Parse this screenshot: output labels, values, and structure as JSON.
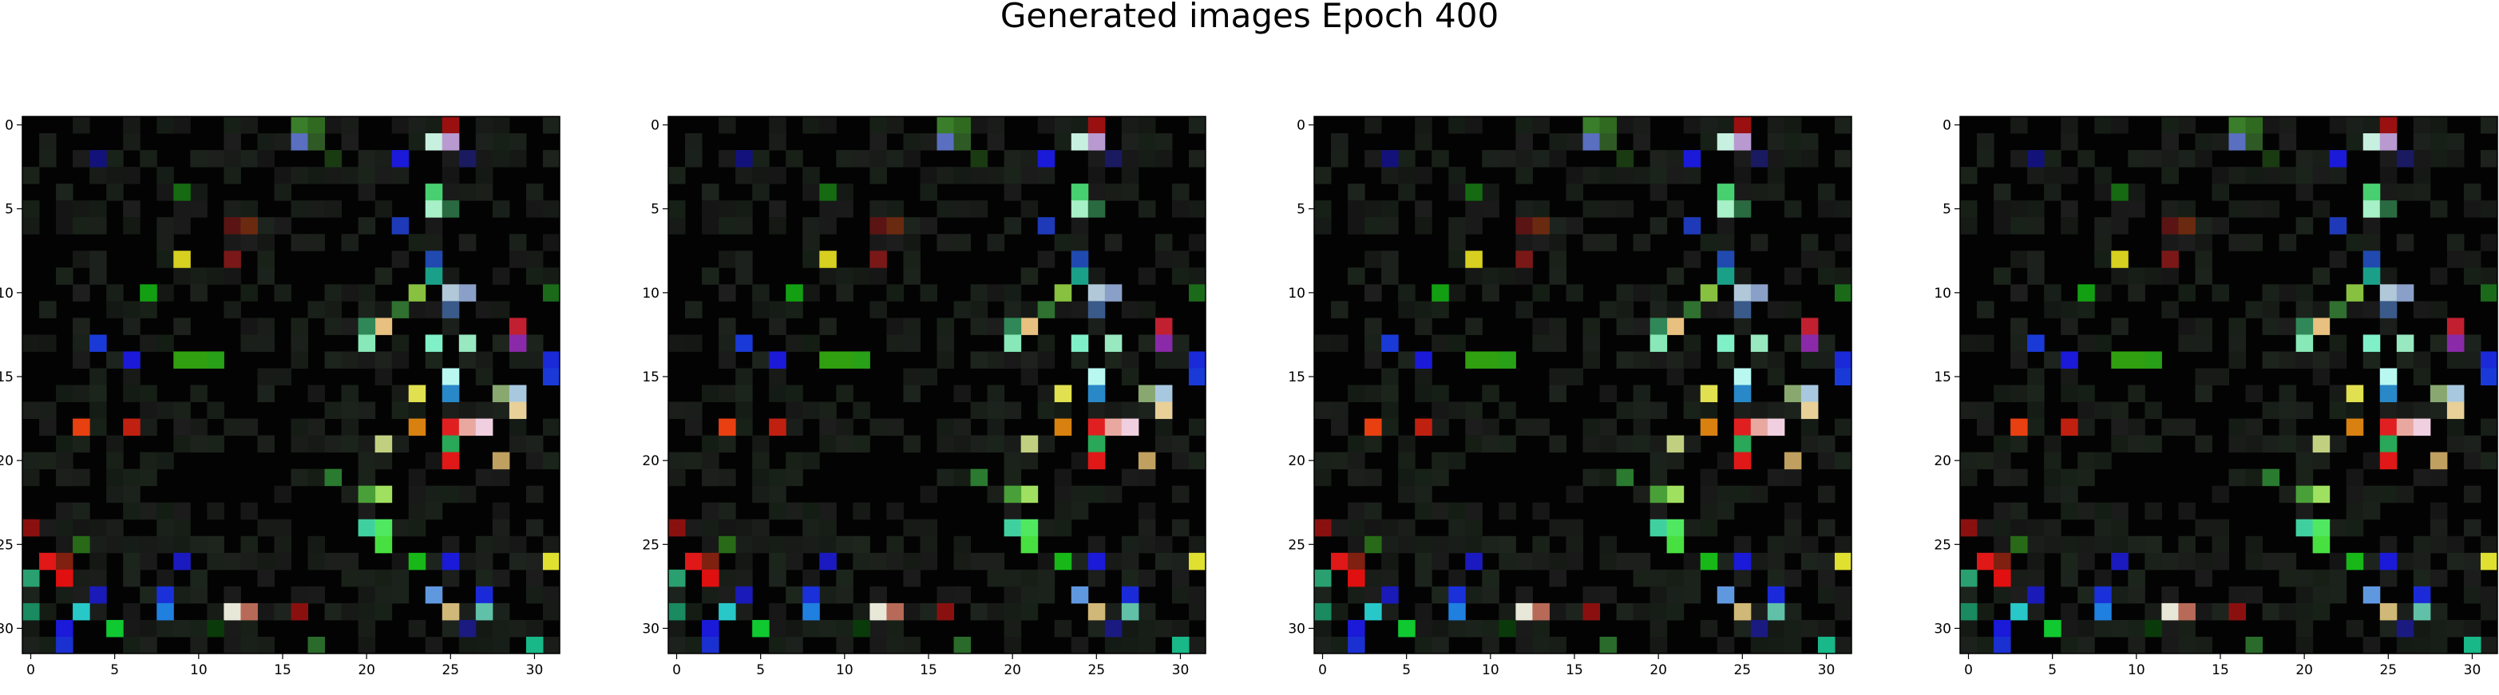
{
  "figure": {
    "title": "Generated images Epoch 400"
  },
  "chart_data": {
    "type": "heatmap",
    "title": "Generated images Epoch 400",
    "grid_size": 32,
    "n_panels": 4,
    "x_ticks": [
      0,
      5,
      10,
      15,
      20,
      25,
      30
    ],
    "y_ticks": [
      0,
      5,
      10,
      15,
      20,
      25,
      30
    ],
    "xlim": [
      -0.5,
      31.5
    ],
    "ylim": [
      31.5,
      -0.5
    ],
    "grid": false,
    "background_color": "#030303",
    "visible_pixels": [
      {
        "x": 16,
        "y": 0,
        "color": "#3a7d2a"
      },
      {
        "x": 17,
        "y": 0,
        "color": "#2f6a20"
      },
      {
        "x": 25,
        "y": 0,
        "color": "#9a1010"
      },
      {
        "x": 16,
        "y": 1,
        "color": "#5a6fbf"
      },
      {
        "x": 17,
        "y": 1,
        "color": "#2f5a25"
      },
      {
        "x": 24,
        "y": 1,
        "color": "#c8f0e0"
      },
      {
        "x": 25,
        "y": 1,
        "color": "#b89ad0"
      },
      {
        "x": 4,
        "y": 2,
        "color": "#12127a"
      },
      {
        "x": 18,
        "y": 2,
        "color": "#1a3a12"
      },
      {
        "x": 22,
        "y": 2,
        "color": "#1a1ad8"
      },
      {
        "x": 26,
        "y": 2,
        "color": "#1a1a60"
      },
      {
        "x": 9,
        "y": 4,
        "color": "#156a12"
      },
      {
        "x": 24,
        "y": 4,
        "color": "#48d070"
      },
      {
        "x": 24,
        "y": 5,
        "color": "#a8f0c8"
      },
      {
        "x": 25,
        "y": 5,
        "color": "#2a6a40"
      },
      {
        "x": 12,
        "y": 6,
        "color": "#5a1414"
      },
      {
        "x": 13,
        "y": 6,
        "color": "#6a2a10"
      },
      {
        "x": 22,
        "y": 6,
        "color": "#1e3ab8"
      },
      {
        "x": 9,
        "y": 8,
        "color": "#d8d020"
      },
      {
        "x": 12,
        "y": 8,
        "color": "#7a1818"
      },
      {
        "x": 24,
        "y": 8,
        "color": "#204ab0"
      },
      {
        "x": 24,
        "y": 9,
        "color": "#1aa088"
      },
      {
        "x": 7,
        "y": 10,
        "color": "#12a012"
      },
      {
        "x": 23,
        "y": 10,
        "color": "#88c040"
      },
      {
        "x": 25,
        "y": 10,
        "color": "#b0c8d8"
      },
      {
        "x": 26,
        "y": 10,
        "color": "#8aa0c8"
      },
      {
        "x": 31,
        "y": 10,
        "color": "#1a6a1a"
      },
      {
        "x": 22,
        "y": 11,
        "color": "#307030"
      },
      {
        "x": 25,
        "y": 11,
        "color": "#3a5a8a"
      },
      {
        "x": 21,
        "y": 12,
        "color": "#e8c080"
      },
      {
        "x": 20,
        "y": 12,
        "color": "#308858"
      },
      {
        "x": 29,
        "y": 12,
        "color": "#c02030"
      },
      {
        "x": 4,
        "y": 13,
        "color": "#1a3ad8"
      },
      {
        "x": 20,
        "y": 13,
        "color": "#88e8b8"
      },
      {
        "x": 24,
        "y": 13,
        "color": "#80f0c8"
      },
      {
        "x": 26,
        "y": 13,
        "color": "#98e8c0"
      },
      {
        "x": 29,
        "y": 13,
        "color": "#8a2aa8"
      },
      {
        "x": 6,
        "y": 14,
        "color": "#1a1ad8"
      },
      {
        "x": 9,
        "y": 14,
        "color": "#30a010"
      },
      {
        "x": 10,
        "y": 14,
        "color": "#30a010"
      },
      {
        "x": 11,
        "y": 14,
        "color": "#28a018"
      },
      {
        "x": 31,
        "y": 14,
        "color": "#1a2ad8"
      },
      {
        "x": 25,
        "y": 15,
        "color": "#b8f8f0"
      },
      {
        "x": 31,
        "y": 15,
        "color": "#1a3ad8"
      },
      {
        "x": 23,
        "y": 16,
        "color": "#e0e050"
      },
      {
        "x": 25,
        "y": 16,
        "color": "#2888c8"
      },
      {
        "x": 28,
        "y": 16,
        "color": "#88a870"
      },
      {
        "x": 29,
        "y": 16,
        "color": "#a8c8e0"
      },
      {
        "x": 29,
        "y": 17,
        "color": "#e8d098"
      },
      {
        "x": 3,
        "y": 18,
        "color": "#e84010"
      },
      {
        "x": 6,
        "y": 18,
        "color": "#c02010"
      },
      {
        "x": 23,
        "y": 18,
        "color": "#d88010"
      },
      {
        "x": 25,
        "y": 18,
        "color": "#e02020"
      },
      {
        "x": 26,
        "y": 18,
        "color": "#e8a8a0"
      },
      {
        "x": 27,
        "y": 18,
        "color": "#f0d0e0"
      },
      {
        "x": 21,
        "y": 19,
        "color": "#c0d080"
      },
      {
        "x": 25,
        "y": 19,
        "color": "#28a858"
      },
      {
        "x": 25,
        "y": 20,
        "color": "#e01818"
      },
      {
        "x": 28,
        "y": 20,
        "color": "#c0a060"
      },
      {
        "x": 18,
        "y": 21,
        "color": "#2a7a30"
      },
      {
        "x": 21,
        "y": 22,
        "color": "#a0e060"
      },
      {
        "x": 20,
        "y": 22,
        "color": "#4aa038"
      },
      {
        "x": 0,
        "y": 24,
        "color": "#8a1010"
      },
      {
        "x": 20,
        "y": 24,
        "color": "#40d0a0"
      },
      {
        "x": 21,
        "y": 24,
        "color": "#50e860"
      },
      {
        "x": 3,
        "y": 25,
        "color": "#286a18"
      },
      {
        "x": 21,
        "y": 25,
        "color": "#48e040"
      },
      {
        "x": 1,
        "y": 26,
        "color": "#e01818"
      },
      {
        "x": 2,
        "y": 26,
        "color": "#802010"
      },
      {
        "x": 9,
        "y": 26,
        "color": "#1a1ac0"
      },
      {
        "x": 23,
        "y": 26,
        "color": "#18b818"
      },
      {
        "x": 25,
        "y": 26,
        "color": "#1a1ad8"
      },
      {
        "x": 31,
        "y": 26,
        "color": "#e0e030"
      },
      {
        "x": 0,
        "y": 27,
        "color": "#2aa070"
      },
      {
        "x": 2,
        "y": 27,
        "color": "#e01010"
      },
      {
        "x": 4,
        "y": 28,
        "color": "#1a1ab8"
      },
      {
        "x": 8,
        "y": 28,
        "color": "#1a30d8"
      },
      {
        "x": 24,
        "y": 28,
        "color": "#6098e0"
      },
      {
        "x": 27,
        "y": 28,
        "color": "#1a2ad8"
      },
      {
        "x": 0,
        "y": 29,
        "color": "#1a8a60"
      },
      {
        "x": 3,
        "y": 29,
        "color": "#28c8c8"
      },
      {
        "x": 8,
        "y": 29,
        "color": "#2080e0"
      },
      {
        "x": 12,
        "y": 29,
        "color": "#e8e8d8"
      },
      {
        "x": 13,
        "y": 29,
        "color": "#b86a58"
      },
      {
        "x": 16,
        "y": 29,
        "color": "#8a1010"
      },
      {
        "x": 25,
        "y": 29,
        "color": "#d0b878"
      },
      {
        "x": 27,
        "y": 29,
        "color": "#60c0a8"
      },
      {
        "x": 2,
        "y": 30,
        "color": "#1a1ad8"
      },
      {
        "x": 5,
        "y": 30,
        "color": "#10c830"
      },
      {
        "x": 11,
        "y": 30,
        "color": "#0a3a0a"
      },
      {
        "x": 26,
        "y": 30,
        "color": "#1a1a80"
      },
      {
        "x": 2,
        "y": 31,
        "color": "#1a30d0"
      },
      {
        "x": 17,
        "y": 31,
        "color": "#2a6a2a"
      },
      {
        "x": 30,
        "y": 31,
        "color": "#18b888"
      }
    ]
  }
}
